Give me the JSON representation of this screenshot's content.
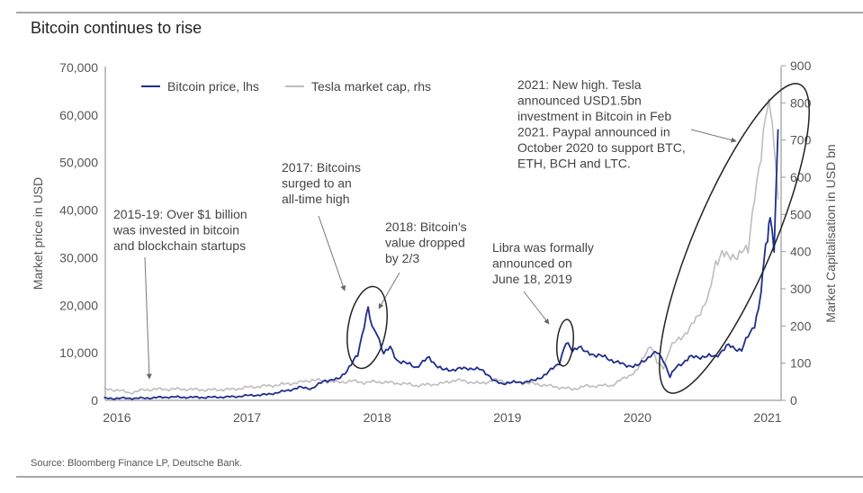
{
  "page": {
    "title": "Bitcoin continues to rise",
    "source": "Source: Bloomberg Finance LP, Deutsche Bank."
  },
  "chart_data": {
    "type": "line",
    "title": "Bitcoin continues to rise",
    "xlabel": "",
    "ylabel": "Market price in USD",
    "y2label": "Market Capitalisation in USD bn",
    "xlim": [
      2015.9,
      2021.1
    ],
    "ylim": [
      0,
      70000
    ],
    "y2lim": [
      0,
      900
    ],
    "x_ticks": [
      "2016",
      "2017",
      "2018",
      "2019",
      "2020",
      "2021"
    ],
    "x_tick_values": [
      2016,
      2017,
      2018,
      2019,
      2020,
      2021
    ],
    "y_ticks": [
      "0",
      "10,000",
      "20,000",
      "30,000",
      "40,000",
      "50,000",
      "60,000",
      "70,000"
    ],
    "y_tick_values": [
      0,
      10000,
      20000,
      30000,
      40000,
      50000,
      60000,
      70000
    ],
    "y2_ticks": [
      "0",
      "100",
      "200",
      "300",
      "400",
      "500",
      "600",
      "700",
      "800",
      "900"
    ],
    "y2_tick_values": [
      0,
      100,
      200,
      300,
      400,
      500,
      600,
      700,
      800,
      900
    ],
    "grid": false,
    "legend_position": "top-left",
    "series": [
      {
        "name": "Bitcoin price, lhs",
        "axis": "left",
        "color": "#1f2e8c",
        "x": [
          2015.9,
          2016.0,
          2016.2,
          2016.4,
          2016.5,
          2016.7,
          2016.9,
          2017.0,
          2017.15,
          2017.3,
          2017.4,
          2017.5,
          2017.6,
          2017.7,
          2017.75,
          2017.8,
          2017.85,
          2017.9,
          2017.93,
          2017.96,
          2018.0,
          2018.05,
          2018.1,
          2018.15,
          2018.2,
          2018.3,
          2018.4,
          2018.45,
          2018.5,
          2018.6,
          2018.7,
          2018.8,
          2018.85,
          2018.9,
          2018.95,
          2019.0,
          2019.1,
          2019.2,
          2019.3,
          2019.4,
          2019.45,
          2019.5,
          2019.55,
          2019.6,
          2019.7,
          2019.8,
          2019.9,
          2020.0,
          2020.1,
          2020.15,
          2020.2,
          2020.25,
          2020.3,
          2020.4,
          2020.5,
          2020.6,
          2020.7,
          2020.8,
          2020.85,
          2020.9,
          2020.93,
          2020.95,
          2020.97,
          2021.0,
          2021.02,
          2021.05,
          2021.08
        ],
        "y": [
          400,
          430,
          450,
          700,
          650,
          620,
          750,
          1000,
          1200,
          2000,
          2700,
          2500,
          4200,
          4400,
          5800,
          7500,
          9500,
          16000,
          19200,
          15500,
          14000,
          10000,
          11000,
          8500,
          8000,
          7000,
          9000,
          7500,
          6400,
          6500,
          6800,
          6400,
          5500,
          4000,
          3500,
          3700,
          3800,
          4100,
          5500,
          8000,
          12000,
          10500,
          11500,
          10000,
          9500,
          8500,
          7400,
          7200,
          9500,
          10000,
          8500,
          5000,
          7000,
          9000,
          9200,
          9300,
          11500,
          10500,
          13500,
          16000,
          19000,
          23000,
          29000,
          34000,
          39000,
          32000,
          57000
        ]
      },
      {
        "name": "Tesla market cap, rhs",
        "axis": "right",
        "color": "#bdbdbd",
        "x": [
          2015.9,
          2016.0,
          2016.1,
          2016.2,
          2016.3,
          2016.5,
          2016.7,
          2016.9,
          2017.0,
          2017.2,
          2017.4,
          2017.5,
          2017.6,
          2017.7,
          2017.8,
          2017.9,
          2018.0,
          2018.2,
          2018.3,
          2018.5,
          2018.6,
          2018.7,
          2018.8,
          2018.9,
          2019.0,
          2019.2,
          2019.4,
          2019.5,
          2019.6,
          2019.8,
          2019.9,
          2020.0,
          2020.05,
          2020.1,
          2020.15,
          2020.2,
          2020.25,
          2020.3,
          2020.4,
          2020.5,
          2020.55,
          2020.6,
          2020.65,
          2020.7,
          2020.8,
          2020.85,
          2020.9,
          2020.95,
          2021.0,
          2021.02,
          2021.05,
          2021.08
        ],
        "y": [
          30,
          28,
          20,
          28,
          30,
          30,
          28,
          30,
          35,
          40,
          48,
          55,
          52,
          48,
          52,
          48,
          50,
          45,
          40,
          45,
          55,
          50,
          45,
          55,
          50,
          45,
          35,
          30,
          38,
          40,
          60,
          80,
          120,
          150,
          100,
          90,
          140,
          160,
          190,
          250,
          280,
          370,
          400,
          380,
          400,
          400,
          560,
          650,
          800,
          790,
          700,
          540
        ]
      }
    ],
    "annotations": [
      {
        "id": "a2015",
        "lines": [
          "2015-19: Over $1 billion",
          "was invested in bitcoin",
          "and blockchain startups"
        ]
      },
      {
        "id": "a2017",
        "lines": [
          "2017: Bitcoins",
          "surged to an",
          "all-time high"
        ]
      },
      {
        "id": "a2018",
        "lines": [
          "2018: Bitcoin's",
          "value dropped",
          "by 2/3"
        ]
      },
      {
        "id": "alibra",
        "lines": [
          "Libra was formally",
          "announced on",
          "June 18, 2019"
        ]
      },
      {
        "id": "a2021",
        "lines": [
          "2021: New high. Tesla",
          "announced USD1.5bn",
          "investment in Bitcoin in Feb",
          "2021. Paypal announced in",
          "October 2020 to support BTC,",
          "ETH, BCH and LTC."
        ]
      }
    ]
  }
}
